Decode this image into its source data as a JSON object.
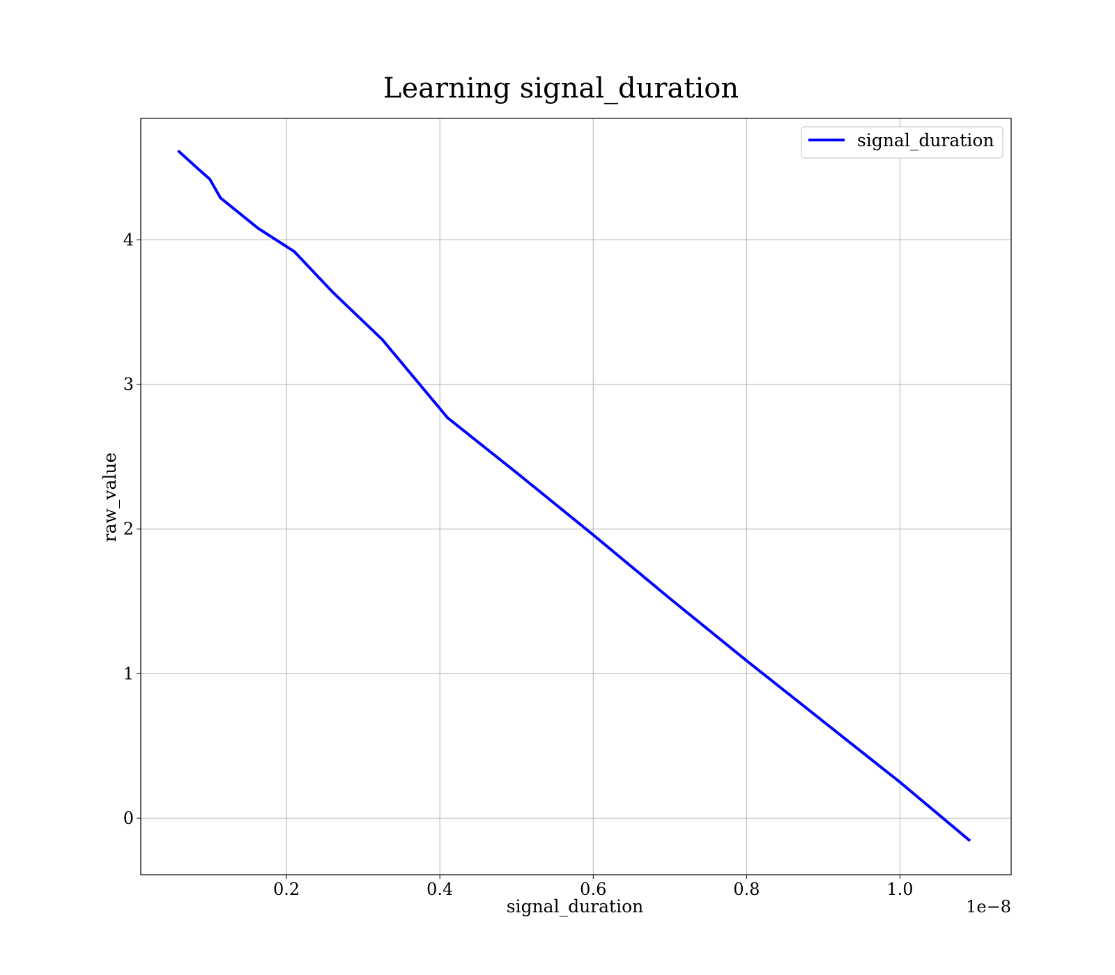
{
  "chart_data": {
    "type": "line",
    "title": "Learning signal_duration",
    "xlabel": "signal_duration",
    "ylabel": "raw_value",
    "x_offset_label": "1e−8",
    "x_scale_factor": 1e-08,
    "xlim": [
      0.01,
      1.145
    ],
    "ylim": [
      -0.39,
      4.84
    ],
    "x_ticks": [
      0.2,
      0.4,
      0.6,
      0.8,
      1.0
    ],
    "x_tick_labels": [
      "0.2",
      "0.4",
      "0.6",
      "0.8",
      "1.0"
    ],
    "y_ticks": [
      0,
      1,
      2,
      3,
      4
    ],
    "y_tick_labels": [
      "0",
      "1",
      "2",
      "3",
      "4"
    ],
    "grid": true,
    "legend_position": "top-right",
    "series": [
      {
        "name": "signal_duration",
        "color": "#0000ff",
        "x": [
          0.06,
          0.085,
          0.1,
          0.114,
          0.163,
          0.21,
          0.26,
          0.325,
          0.41,
          0.5,
          0.6,
          0.7,
          0.8,
          0.9,
          1.0,
          1.09
        ],
        "y": [
          4.61,
          4.49,
          4.42,
          4.29,
          4.08,
          3.92,
          3.64,
          3.31,
          2.77,
          2.39,
          1.96,
          1.52,
          1.09,
          0.67,
          0.25,
          -0.15
        ]
      }
    ]
  }
}
